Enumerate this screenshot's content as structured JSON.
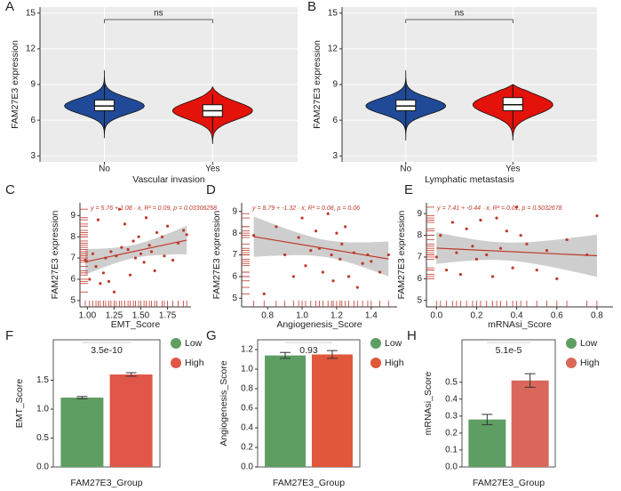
{
  "chart_data": [
    {
      "type": "violin",
      "label": "A",
      "ylabel": "FAM27E3 expression",
      "xlabel": "Vascular invasion",
      "annotation": "ns",
      "categories": [
        "No",
        "Yes"
      ],
      "colors": [
        "#204a97",
        "#e3120b"
      ],
      "grid": true,
      "stats": [
        {
          "min": 4.5,
          "whisker_low": 5.3,
          "q1": 6.8,
          "median": 7.2,
          "q3": 7.7,
          "whisker_high": 9.0,
          "max": 10.2
        },
        {
          "min": 4.0,
          "whisker_low": 5.0,
          "q1": 6.3,
          "median": 6.8,
          "q3": 7.3,
          "whisker_high": 8.2,
          "max": 8.8
        }
      ],
      "ylim": [
        2.5,
        15.5
      ],
      "yticks": [
        3,
        6,
        9,
        12,
        15
      ]
    },
    {
      "type": "violin",
      "label": "B",
      "ylabel": "FAM27E3 expression",
      "xlabel": "Lymphatic metastasis",
      "annotation": "ns",
      "categories": [
        "No",
        "Yes"
      ],
      "colors": [
        "#204a97",
        "#e3120b"
      ],
      "grid": true,
      "stats": [
        {
          "min": 4.3,
          "whisker_low": 5.2,
          "q1": 6.8,
          "median": 7.2,
          "q3": 7.7,
          "whisker_high": 9.0,
          "max": 10.2
        },
        {
          "min": 4.3,
          "whisker_low": 5.3,
          "q1": 6.8,
          "median": 7.3,
          "q3": 7.9,
          "whisker_high": 9.0,
          "max": 9.0
        }
      ],
      "ylim": [
        2.5,
        15.5
      ],
      "yticks": [
        3,
        6,
        9,
        12,
        15
      ]
    },
    {
      "type": "scatter",
      "label": "C",
      "ylabel": "FAM27E3 expression",
      "xlabel": "EMT_Score",
      "color": "#c0392b",
      "equation": "y = 5.76 + 1.08 · x,  R² = 0.09,  p = 0.03306258",
      "fit": {
        "intercept": 5.76,
        "slope": 1.08
      },
      "x": [
        0.98,
        1.02,
        1.05,
        1.08,
        1.1,
        1.12,
        1.15,
        1.17,
        1.2,
        1.22,
        1.25,
        1.27,
        1.3,
        1.32,
        1.35,
        1.38,
        1.4,
        1.43,
        1.45,
        1.48,
        1.5,
        1.53,
        1.55,
        1.58,
        1.6,
        1.63,
        1.65,
        1.7,
        1.72,
        1.75,
        1.8,
        1.85,
        1.9,
        1.93
      ],
      "y": [
        6.9,
        6.0,
        7.2,
        6.6,
        8.8,
        5.8,
        6.3,
        7.0,
        5.9,
        7.3,
        5.4,
        7.1,
        9.3,
        7.5,
        8.6,
        7.4,
        6.2,
        7.8,
        7.0,
        8.0,
        7.2,
        6.8,
        8.9,
        7.6,
        7.3,
        6.4,
        8.2,
        8.0,
        7.1,
        8.5,
        6.9,
        7.7,
        8.3,
        8.1
      ],
      "xlim": [
        0.93,
        1.97
      ],
      "ylim": [
        4.7,
        9.6
      ],
      "xticks": [
        {
          "value": 1,
          "label": "1.00"
        },
        1.25,
        {
          "value": 1.5,
          "label": "1.50"
        },
        1.75
      ],
      "yticks": [
        5,
        6,
        7,
        8,
        9
      ]
    },
    {
      "type": "scatter",
      "label": "D",
      "ylabel": "FAM27E3 expression",
      "xlabel": "Angiogenesis_Score",
      "color": "#c0392b",
      "equation": "y = 8.79 + -1.32 · x,  R² = 0.08,  p = 0.06",
      "fit": {
        "intercept": 8.79,
        "slope": -1.32
      },
      "x": [
        0.72,
        0.78,
        0.85,
        0.9,
        0.95,
        0.98,
        1.0,
        1.02,
        1.05,
        1.08,
        1.1,
        1.12,
        1.15,
        1.17,
        1.18,
        1.2,
        1.22,
        1.23,
        1.25,
        1.27,
        1.3,
        1.32,
        1.35,
        1.38,
        1.4,
        1.45,
        1.5
      ],
      "y": [
        7.9,
        5.2,
        8.3,
        7.0,
        6.0,
        7.8,
        8.7,
        6.5,
        7.2,
        8.1,
        7.3,
        6.2,
        8.9,
        7.0,
        5.8,
        8.0,
        6.8,
        7.5,
        8.3,
        6.0,
        7.1,
        5.5,
        6.6,
        7.0,
        6.7,
        6.2,
        7.0
      ],
      "xlim": [
        0.65,
        1.55
      ],
      "ylim": [
        4.6,
        9.4
      ],
      "xticks": [
        0.8,
        {
          "value": 1,
          "label": "1.0"
        },
        1.2,
        1.4
      ],
      "yticks": [
        5,
        6,
        7,
        8,
        9
      ]
    },
    {
      "type": "scatter",
      "label": "E",
      "ylabel": "FAM27E3 expression",
      "xlabel": "mRNAsi_Score",
      "color": "#c0392b",
      "equation": "y = 7.41 + -0.44 · x,  R² = 0.01,  p = 0.5032678",
      "fit": {
        "intercept": 7.41,
        "slope": -0.44
      },
      "x": [
        0.0,
        0.02,
        0.05,
        0.08,
        0.1,
        0.12,
        0.15,
        0.18,
        0.2,
        0.22,
        0.25,
        0.28,
        0.3,
        0.32,
        0.35,
        0.38,
        0.4,
        0.42,
        0.45,
        0.5,
        0.55,
        0.6,
        0.65,
        0.75,
        0.8
      ],
      "y": [
        7.0,
        8.0,
        6.4,
        8.6,
        7.2,
        6.2,
        8.3,
        7.5,
        6.9,
        8.7,
        7.1,
        6.1,
        8.8,
        7.4,
        8.2,
        6.5,
        9.3,
        8.0,
        7.6,
        6.4,
        7.3,
        6.0,
        7.8,
        7.1,
        8.9
      ],
      "xlim": [
        -0.05,
        0.88
      ],
      "ylim": [
        4.7,
        9.5
      ],
      "xticks": [
        {
          "value": 0,
          "label": "0.0"
        },
        0.2,
        0.4,
        0.6,
        0.8
      ],
      "yticks": [
        5,
        6,
        7,
        8,
        9
      ]
    },
    {
      "type": "bar",
      "label": "F",
      "ylabel": "EMT_Score",
      "xlabel": "FAM27E3_Group",
      "annotation": "3.5e-10",
      "categories": [
        "Low",
        "High"
      ],
      "values": [
        1.2,
        1.6
      ],
      "errors": [
        0.02,
        0.03
      ],
      "colors": [
        "#5e9e62",
        "#e0574a"
      ],
      "ylim": [
        0,
        2.2
      ],
      "yticks": [
        {
          "value": 0,
          "label": "0.0"
        },
        0.5,
        {
          "value": 1,
          "label": "1.0"
        },
        1.5
      ]
    },
    {
      "type": "bar",
      "label": "G",
      "ylabel": "Angiogenesis_Score",
      "xlabel": "FAM27E3_Group",
      "annotation": "0.93",
      "categories": [
        "Low",
        "High"
      ],
      "values": [
        1.14,
        1.15
      ],
      "errors": [
        0.03,
        0.04
      ],
      "colors": [
        "#5e9e62",
        "#e0573a"
      ],
      "ylim": [
        0,
        1.3
      ],
      "yticks": [
        {
          "value": 0,
          "label": "0.0"
        },
        0.2,
        0.4,
        0.6,
        0.8,
        {
          "value": 1,
          "label": "1.0"
        },
        1.2
      ]
    },
    {
      "type": "bar",
      "label": "H",
      "ylabel": "mRNAsi_Score",
      "xlabel": "FAM27E3_Group",
      "annotation": "5.1e-5",
      "categories": [
        "Low",
        "High"
      ],
      "values": [
        0.28,
        0.51
      ],
      "errors": [
        0.03,
        0.04
      ],
      "colors": [
        "#5e9e62",
        "#d9675a"
      ],
      "ylim": [
        0,
        0.75
      ],
      "yticks": [
        {
          "value": 0,
          "label": "0.0"
        },
        0.1,
        0.2,
        0.3,
        0.4,
        0.5
      ]
    }
  ]
}
